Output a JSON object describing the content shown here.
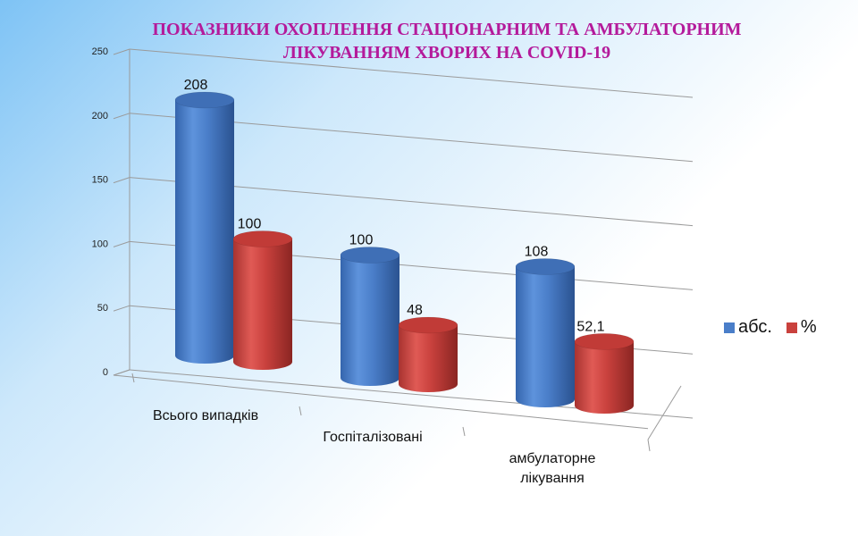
{
  "chart_data": {
    "type": "bar",
    "title_lines": [
      "ПОКАЗНИКИ ОХОПЛЕННЯ СТАЦІОНАРНИМ ТА АМБУЛАТОРНИМ",
      "ЛІКУВАННЯМ ХВОРИХ НА COVID-19"
    ],
    "categories": [
      "Всього випадків",
      "Госпіталізовані",
      "амбулаторне лікування"
    ],
    "category_label_lines": [
      [
        "Всього випадків"
      ],
      [
        "Госпіталізовані"
      ],
      [
        "амбулаторне",
        "лікування"
      ]
    ],
    "series": [
      {
        "name": "абс.",
        "values": [
          208,
          100,
          108
        ],
        "labels": [
          "208",
          "100",
          "108"
        ],
        "color": "#4a7ec9"
      },
      {
        "name": "%",
        "values": [
          100,
          48,
          52.1
        ],
        "labels": [
          "100",
          "48",
          "52,1"
        ],
        "color": "#c9413d"
      }
    ],
    "yticks": [
      "0",
      "50",
      "100",
      "150",
      "200",
      "250"
    ],
    "ylim": [
      0,
      250
    ],
    "grid": true,
    "legend_position": "right",
    "style": "3d-cylinder"
  }
}
